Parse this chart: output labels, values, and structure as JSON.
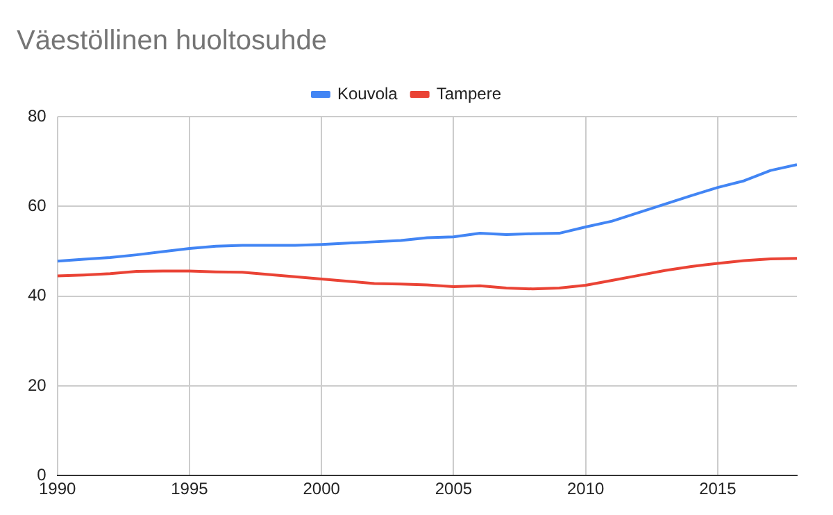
{
  "chart_data": {
    "type": "line",
    "title": "Väestöllinen huoltosuhde",
    "x": [
      1990,
      1991,
      1992,
      1993,
      1994,
      1995,
      1996,
      1997,
      1998,
      1999,
      2000,
      2001,
      2002,
      2003,
      2004,
      2005,
      2006,
      2007,
      2008,
      2009,
      2010,
      2011,
      2012,
      2013,
      2014,
      2015,
      2016,
      2017,
      2018
    ],
    "series": [
      {
        "name": "Kouvola",
        "color": "#4285f4",
        "values": [
          47.8,
          48.2,
          48.6,
          49.2,
          49.9,
          50.6,
          51.1,
          51.3,
          51.3,
          51.3,
          51.5,
          51.8,
          52.1,
          52.4,
          53.0,
          53.2,
          54.0,
          53.7,
          53.9,
          54.0,
          55.4,
          56.7,
          58.6,
          60.5,
          62.4,
          64.2,
          65.7,
          68.0,
          69.3
        ]
      },
      {
        "name": "Tampere",
        "color": "#ea4335",
        "values": [
          44.5,
          44.7,
          45.0,
          45.5,
          45.6,
          45.6,
          45.4,
          45.3,
          44.8,
          44.3,
          43.8,
          43.3,
          42.8,
          42.7,
          42.5,
          42.1,
          42.3,
          41.8,
          41.6,
          41.8,
          42.4,
          43.5,
          44.6,
          45.7,
          46.6,
          47.3,
          47.9,
          48.3,
          48.4
        ]
      }
    ],
    "xlim": [
      1990,
      2018
    ],
    "xticks": [
      1990,
      1995,
      2000,
      2005,
      2010,
      2015
    ],
    "ylim": [
      0,
      80
    ],
    "yticks": [
      0,
      20,
      40,
      60,
      80
    ],
    "grid": true,
    "legend": "top",
    "marker": "none",
    "line_style": "solid"
  }
}
